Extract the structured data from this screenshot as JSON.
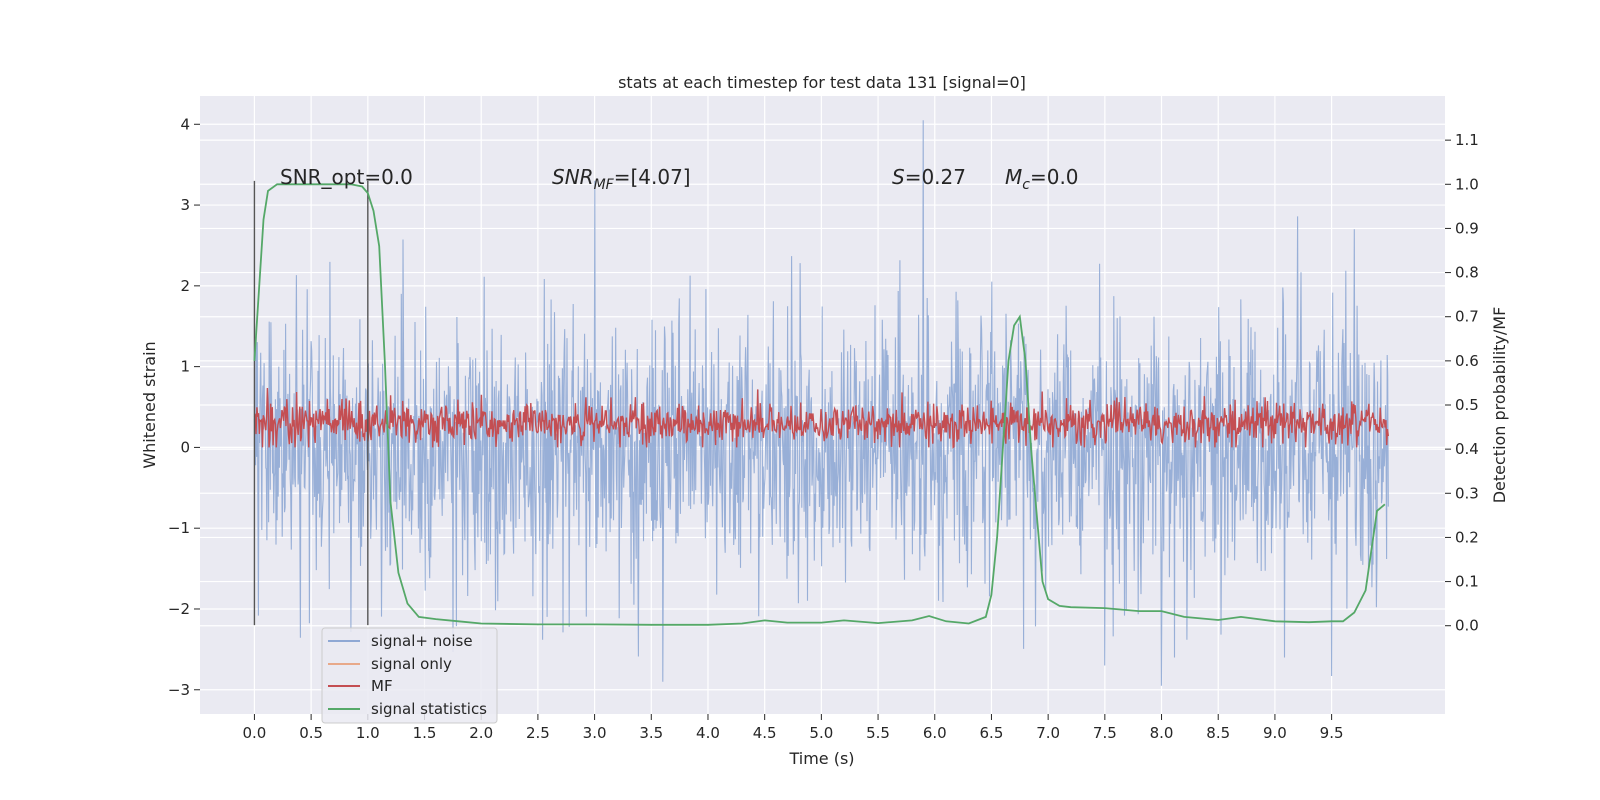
{
  "chart_data": {
    "type": "line",
    "title": "stats at each timestep for test data 131 [signal=0]",
    "xlabel": "Time (s)",
    "ylabel": "Whitened strain",
    "y2label": "Detection probability/MF",
    "xlim": [
      -0.48,
      10.5
    ],
    "ylim": [
      -3.3,
      4.35
    ],
    "y2lim": [
      -0.2,
      1.2
    ],
    "x_ticks": [
      "0.0",
      "0.5",
      "1.0",
      "1.5",
      "2.0",
      "2.5",
      "3.0",
      "3.5",
      "4.0",
      "4.5",
      "5.0",
      "5.5",
      "6.0",
      "6.5",
      "7.0",
      "7.5",
      "8.0",
      "8.5",
      "9.0",
      "9.5"
    ],
    "y_ticks": [
      "4",
      "3",
      "2",
      "1",
      "0",
      "−1",
      "−2",
      "−3"
    ],
    "y2_ticks": [
      "1.1",
      "1.0",
      "0.9",
      "0.8",
      "0.7",
      "0.6",
      "0.5",
      "0.4",
      "0.3",
      "0.2",
      "0.1",
      "0.0"
    ],
    "grid": true,
    "legend_position": "lower-left",
    "annotations": {
      "snr_opt": "SNR_opt=0.0",
      "snr_mf_main": "SNR",
      "snr_mf_sub": "MF",
      "snr_mf_value": "=[4.07]",
      "s_symbol": "S",
      "s_value": "=0.27",
      "mc_main": "M",
      "mc_sub": "c",
      "mc_value": "=0.0"
    },
    "window_markers": [
      0.0,
      1.0
    ],
    "series": [
      {
        "name": "signal+ noise",
        "color": "#8fa8d4",
        "axis": "left",
        "t_start": 0.0,
        "t_end": 10.0,
        "noise_sigma": 0.8,
        "peaks": [
          [
            3.0,
            3.3
          ],
          [
            5.9,
            4.05
          ],
          [
            9.2,
            2.86
          ],
          [
            9.7,
            2.7
          ],
          [
            3.6,
            -2.9
          ],
          [
            8.0,
            -2.95
          ],
          [
            9.5,
            -2.83
          ],
          [
            7.5,
            -2.7
          ]
        ]
      },
      {
        "name": "signal only",
        "color": "#e8a98a",
        "axis": "left",
        "x": [],
        "y": []
      },
      {
        "name": "MF",
        "color": "#c44e52",
        "axis": "left",
        "t_start": 0.0,
        "t_end": 10.0,
        "mean": 0.3,
        "range": [
          0.0,
          0.97
        ]
      },
      {
        "name": "signal statistics",
        "color": "#55a868",
        "axis": "right",
        "x": [
          0.0,
          0.05,
          0.08,
          0.12,
          0.2,
          0.3,
          0.5,
          0.7,
          0.85,
          0.95,
          1.0,
          1.05,
          1.1,
          1.15,
          1.2,
          1.27,
          1.35,
          1.45,
          1.6,
          1.8,
          2.0,
          2.5,
          3.0,
          3.5,
          4.0,
          4.3,
          4.5,
          4.7,
          5.0,
          5.2,
          5.5,
          5.8,
          5.95,
          6.1,
          6.3,
          6.45,
          6.5,
          6.55,
          6.6,
          6.65,
          6.7,
          6.75,
          6.8,
          6.85,
          6.9,
          6.95,
          7.0,
          7.1,
          7.2,
          7.5,
          7.8,
          8.0,
          8.2,
          8.5,
          8.7,
          9.0,
          9.3,
          9.5,
          9.6,
          9.7,
          9.8,
          9.9,
          9.97
        ],
        "y": [
          0.6,
          0.8,
          0.92,
          0.985,
          1.0,
          1.0,
          1.0,
          1.0,
          1.0,
          0.995,
          0.98,
          0.94,
          0.86,
          0.6,
          0.28,
          0.12,
          0.05,
          0.02,
          0.015,
          0.01,
          0.005,
          0.003,
          0.003,
          0.002,
          0.002,
          0.005,
          0.012,
          0.007,
          0.007,
          0.012,
          0.006,
          0.012,
          0.022,
          0.01,
          0.005,
          0.02,
          0.07,
          0.2,
          0.4,
          0.6,
          0.68,
          0.7,
          0.6,
          0.4,
          0.25,
          0.1,
          0.06,
          0.045,
          0.042,
          0.04,
          0.033,
          0.033,
          0.02,
          0.013,
          0.02,
          0.01,
          0.008,
          0.01,
          0.01,
          0.03,
          0.08,
          0.26,
          0.275
        ]
      }
    ]
  }
}
